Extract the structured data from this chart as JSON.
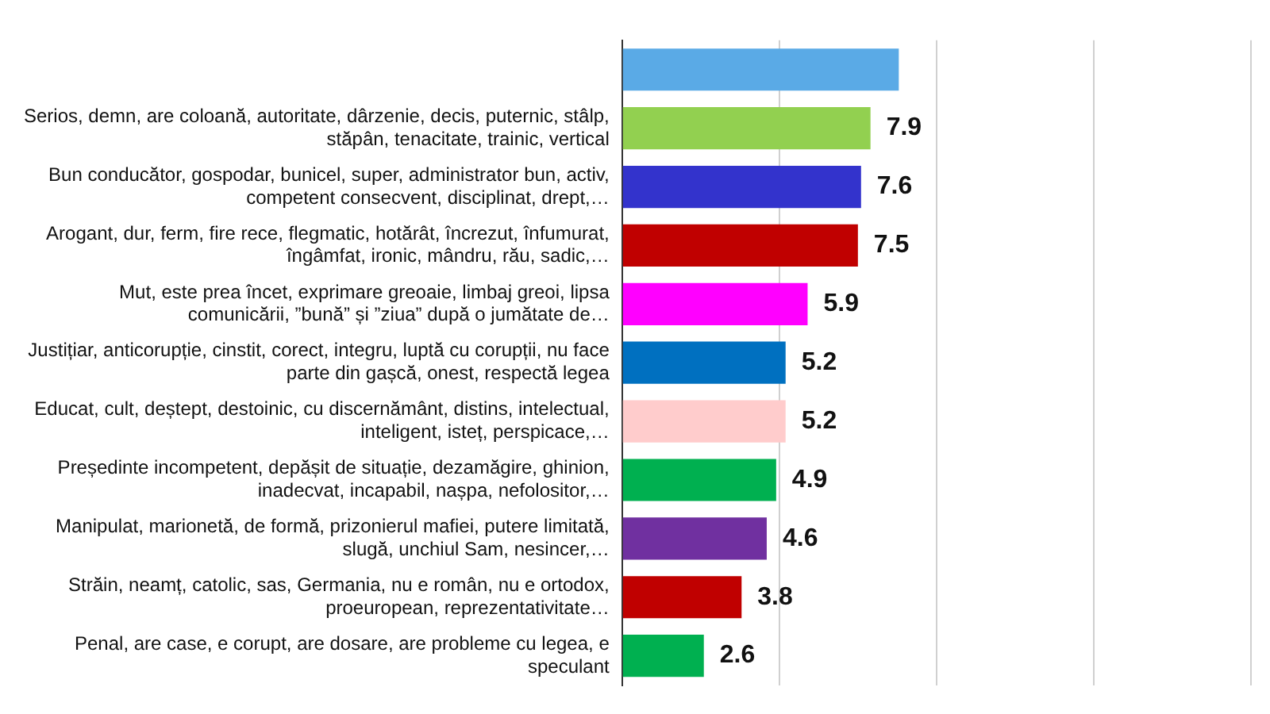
{
  "chart_data": {
    "type": "bar",
    "orientation": "horizontal",
    "categories": [
      null,
      "Serios, demn, are coloană, autoritate, dârzenie, decis, puternic, stâlp, stăpân, tenacitate, trainic, vertical",
      "Bun conducător, gospodar, bunicel, super, administrator bun, activ, competent consecvent, disciplinat, drept,…",
      "Arogant, dur, ferm, fire rece, flegmatic, hotărât, încrezut, înfumurat, îngâmfat, ironic, mândru, rău, sadic,…",
      "Mut, este prea încet, exprimare greoaie, limbaj greoi, lipsa comunicării, ”bună” și ”ziua” după o jumătate de…",
      "Justițiar, anticorupție, cinstit, corect, integru, luptă cu corupții, nu face parte din gașcă, onest, respectă legea",
      "Educat, cult, deștept, destoinic, cu discernământ, distins, intelectual, inteligent, isteț, perspicace,…",
      "Președinte incompetent, depășit de situație, dezamăgire, ghinion, inadecvat, incapabil, nașpa, nefolositor,…",
      "Manipulat, marionetă, de formă, prizonierul mafiei, putere limitată, slugă, unchiul Sam, nesincer,…",
      "Străin, neamț, catolic, sas, Germania, nu e român, nu e ortodox, proeuropean, reprezentativitate…",
      "Penal, are case, e corupt, are dosare, are probleme cu legea, e speculant"
    ],
    "values": [
      8.8,
      7.9,
      7.6,
      7.5,
      5.9,
      5.2,
      5.2,
      4.9,
      4.6,
      3.8,
      2.6
    ],
    "value_labels": [
      null,
      "7.9",
      "7.6",
      "7.5",
      "5.9",
      "5.2",
      "5.2",
      "4.9",
      "4.6",
      "3.8",
      "2.6"
    ],
    "colors": [
      "#5aaae6",
      "#92d050",
      "#3333cc",
      "#c00000",
      "#ff00ff",
      "#0070c0",
      "#ffcccc",
      "#00b050",
      "#7030a0",
      "#c00000",
      "#00b050"
    ],
    "xlim": [
      0,
      20
    ],
    "xticks": [
      {
        "value": 0,
        "label": null
      },
      {
        "value": 5,
        "label": null
      },
      {
        "value": 10,
        "label": null
      },
      {
        "value": 15,
        "label": null
      },
      {
        "value": 20,
        "label": null
      }
    ],
    "grid": "x",
    "tick_labels": "y"
  }
}
